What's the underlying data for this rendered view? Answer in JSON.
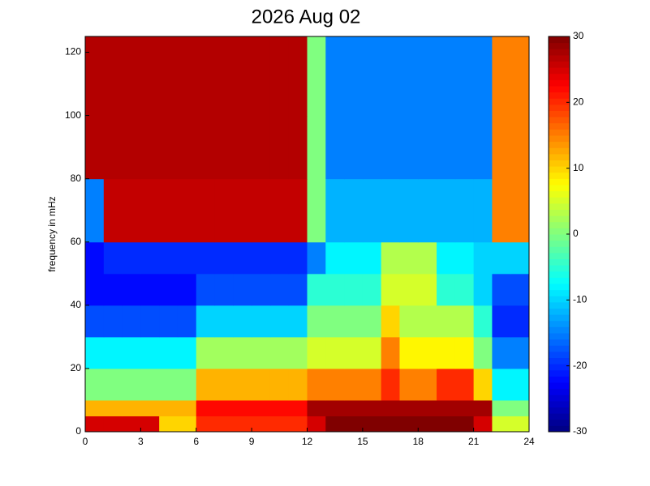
{
  "chart_data": {
    "type": "heatmap",
    "title": "2026 Aug 02",
    "ylabel": "frequency in mHz",
    "xbins": [
      0,
      1,
      2,
      3,
      4,
      5,
      6,
      7,
      8,
      9,
      10,
      11,
      12,
      13,
      14,
      15,
      16,
      17,
      18,
      19,
      20,
      21,
      22,
      23,
      24
    ],
    "ybins": [
      0,
      5,
      10,
      20,
      30,
      40,
      50,
      60,
      80,
      100,
      125
    ],
    "values": [
      [
        25,
        25,
        25,
        25,
        10,
        10,
        20,
        20,
        20,
        20,
        20,
        20,
        25,
        30,
        30,
        30,
        30,
        30,
        30,
        30,
        30,
        25,
        5,
        5
      ],
      [
        12,
        12,
        12,
        12,
        12,
        12,
        22,
        22,
        22,
        22,
        22,
        22,
        28,
        28,
        28,
        28,
        28,
        28,
        28,
        28,
        28,
        28,
        0,
        0
      ],
      [
        0,
        0,
        0,
        0,
        0,
        0,
        12,
        12,
        12,
        12,
        12,
        12,
        15,
        15,
        15,
        15,
        20,
        15,
        15,
        20,
        20,
        10,
        -8,
        -8
      ],
      [
        -8,
        -8,
        -8,
        -8,
        -8,
        -8,
        2,
        2,
        2,
        2,
        2,
        2,
        5,
        5,
        5,
        5,
        15,
        8,
        8,
        8,
        8,
        0,
        -15,
        -15
      ],
      [
        -18,
        -18,
        -18,
        -18,
        -18,
        -18,
        -10,
        -10,
        -10,
        -10,
        -10,
        -10,
        0,
        0,
        0,
        0,
        10,
        3,
        3,
        3,
        3,
        -5,
        -20,
        -20
      ],
      [
        -22,
        -22,
        -22,
        -22,
        -22,
        -22,
        -18,
        -18,
        -18,
        -18,
        -18,
        -18,
        -5,
        -5,
        -5,
        -5,
        5,
        5,
        5,
        -5,
        -5,
        -10,
        -18,
        -18
      ],
      [
        -22,
        -20,
        -20,
        -20,
        -20,
        -20,
        -20,
        -20,
        -20,
        -20,
        -20,
        -20,
        -15,
        -8,
        -8,
        -8,
        3,
        3,
        3,
        -8,
        -8,
        -10,
        -10,
        -10
      ],
      [
        -15,
        26,
        26,
        26,
        26,
        26,
        26,
        26,
        26,
        26,
        26,
        26,
        0,
        -12,
        -12,
        -12,
        -12,
        -12,
        -12,
        -12,
        -12,
        -12,
        15,
        15
      ],
      [
        27,
        27,
        27,
        27,
        27,
        27,
        27,
        27,
        27,
        27,
        27,
        27,
        0,
        -15,
        -15,
        -15,
        -15,
        -15,
        -15,
        -15,
        -15,
        -15,
        15,
        15
      ],
      [
        27,
        27,
        27,
        27,
        27,
        27,
        27,
        27,
        27,
        27,
        27,
        27,
        0,
        -15,
        -15,
        -15,
        -15,
        -15,
        -15,
        -15,
        -15,
        -15,
        15,
        15
      ]
    ],
    "colormap": "jet",
    "xlim": [
      0,
      24
    ],
    "xticks": [
      0,
      3,
      6,
      9,
      12,
      15,
      18,
      21,
      24
    ],
    "ylim": [
      0,
      125
    ],
    "yticks": [
      0,
      20,
      40,
      60,
      80,
      100,
      120
    ],
    "clim": [
      -30,
      30
    ],
    "cticks": [
      -30,
      -20,
      -10,
      0,
      10,
      20,
      30
    ]
  }
}
